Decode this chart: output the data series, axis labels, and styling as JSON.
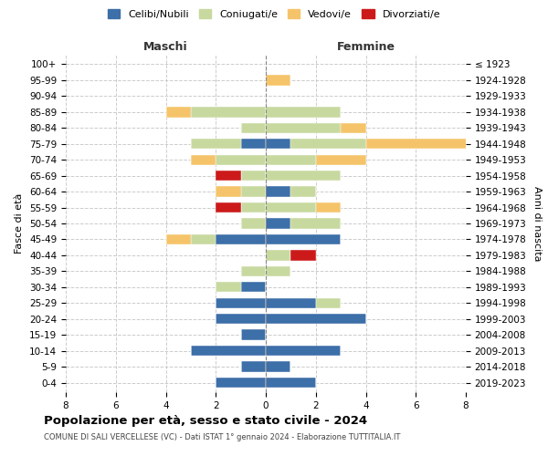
{
  "age_groups": [
    "100+",
    "95-99",
    "90-94",
    "85-89",
    "80-84",
    "75-79",
    "70-74",
    "65-69",
    "60-64",
    "55-59",
    "50-54",
    "45-49",
    "40-44",
    "35-39",
    "30-34",
    "25-29",
    "20-24",
    "15-19",
    "10-14",
    "5-9",
    "0-4"
  ],
  "birth_years": [
    "≤ 1923",
    "1924-1928",
    "1929-1933",
    "1934-1938",
    "1939-1943",
    "1944-1948",
    "1949-1953",
    "1954-1958",
    "1959-1963",
    "1964-1968",
    "1969-1973",
    "1974-1978",
    "1979-1983",
    "1984-1988",
    "1989-1993",
    "1994-1998",
    "1999-2003",
    "2004-2008",
    "2009-2013",
    "2014-2018",
    "2019-2023"
  ],
  "maschi": {
    "celibi": [
      0,
      0,
      0,
      0,
      0,
      1,
      0,
      0,
      0,
      0,
      0,
      2,
      0,
      0,
      1,
      2,
      2,
      1,
      3,
      1,
      2
    ],
    "coniugati": [
      0,
      0,
      0,
      3,
      1,
      2,
      2,
      1,
      1,
      1,
      1,
      1,
      0,
      1,
      1,
      0,
      0,
      0,
      0,
      0,
      0
    ],
    "vedovi": [
      0,
      0,
      0,
      1,
      0,
      0,
      1,
      0,
      1,
      0,
      0,
      1,
      0,
      0,
      0,
      0,
      0,
      0,
      0,
      0,
      0
    ],
    "divorziati": [
      0,
      0,
      0,
      0,
      0,
      0,
      0,
      1,
      0,
      1,
      0,
      0,
      0,
      0,
      0,
      0,
      0,
      0,
      0,
      0,
      0
    ]
  },
  "femmine": {
    "nubili": [
      0,
      0,
      0,
      0,
      0,
      1,
      0,
      0,
      1,
      0,
      1,
      3,
      0,
      0,
      0,
      2,
      4,
      0,
      3,
      1,
      2
    ],
    "coniugate": [
      0,
      0,
      0,
      3,
      3,
      3,
      2,
      3,
      1,
      2,
      2,
      0,
      1,
      1,
      0,
      1,
      0,
      0,
      0,
      0,
      0
    ],
    "vedove": [
      0,
      1,
      0,
      0,
      1,
      5,
      2,
      0,
      0,
      1,
      0,
      0,
      0,
      0,
      0,
      0,
      0,
      0,
      0,
      0,
      0
    ],
    "divorziate": [
      0,
      0,
      0,
      0,
      0,
      0,
      0,
      0,
      0,
      0,
      0,
      0,
      1,
      0,
      0,
      0,
      0,
      0,
      0,
      0,
      0
    ]
  },
  "colors": {
    "celibi_nubili": "#3d6fa8",
    "coniugati": "#c8d9a0",
    "vedovi": "#f5c46a",
    "divorziati": "#cc1a1a"
  },
  "xlim": 8,
  "title": "Popolazione per età, sesso e stato civile - 2024",
  "subtitle": "COMUNE DI SALI VERCELLESE (VC) - Dati ISTAT 1° gennaio 2024 - Elaborazione TUTTITALIA.IT",
  "ylabel_left": "Fasce di età",
  "ylabel_right": "Anni di nascita",
  "xlabel_maschi": "Maschi",
  "xlabel_femmine": "Femmine",
  "legend_labels": [
    "Celibi/Nubili",
    "Coniugati/e",
    "Vedovi/e",
    "Divorziati/e"
  ]
}
